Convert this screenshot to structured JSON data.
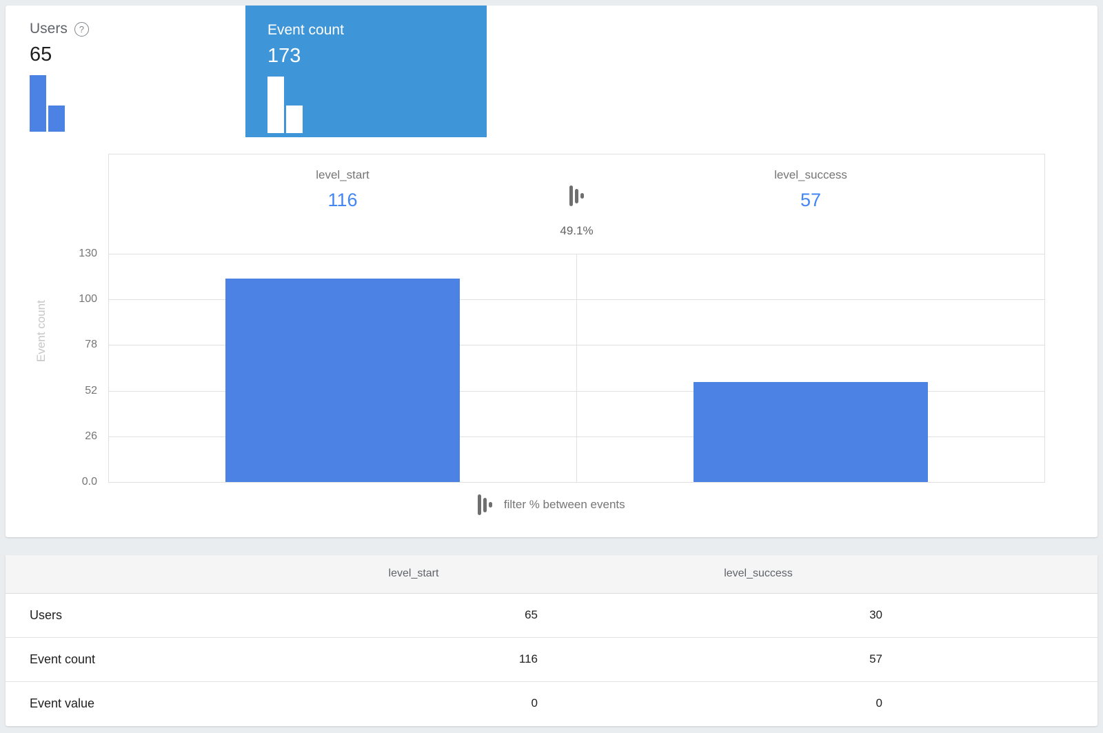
{
  "icons": {
    "help": "?"
  },
  "metrics": {
    "users": {
      "label": "Users",
      "value": "65",
      "mini_bars": [
        65,
        30
      ]
    },
    "event_count": {
      "label": "Event count",
      "value": "173",
      "mini_bars": [
        116,
        57
      ],
      "selected": true
    }
  },
  "chart": {
    "events": [
      {
        "name": "level_start",
        "count": "116",
        "value": 116
      },
      {
        "name": "level_success",
        "count": "57",
        "value": 57
      }
    ],
    "filter_percent": "49.1%",
    "y_axis_label": "Event count",
    "y_max": 130,
    "y_ticks": [
      "130",
      "100",
      "78",
      "52",
      "26",
      "0.0"
    ],
    "legend_label": "filter % between events",
    "colors": {
      "bar": "#4d82e5",
      "count_link": "#4285f4",
      "selected_tile": "#3e96d8"
    }
  },
  "table": {
    "columns": [
      "level_start",
      "level_success"
    ],
    "rows": [
      {
        "label": "Users",
        "values": [
          "65",
          "30"
        ]
      },
      {
        "label": "Event count",
        "values": [
          "116",
          "57"
        ]
      },
      {
        "label": "Event value",
        "values": [
          "0",
          "0"
        ]
      }
    ]
  },
  "chart_data": {
    "type": "bar",
    "categories": [
      "level_start",
      "level_success"
    ],
    "values": [
      116,
      57
    ],
    "xlabel": "",
    "ylabel": "Event count",
    "ylim": [
      0,
      130
    ],
    "y_tick_labels": [
      "0.0",
      "26",
      "52",
      "78",
      "100",
      "130"
    ],
    "grid": true,
    "annotations": {
      "filter_percent_between_events": "49.1%"
    },
    "summary_metrics": {
      "Users": 65,
      "Event count": 173
    },
    "table": {
      "columns": [
        "level_start",
        "level_success"
      ],
      "rows": {
        "Users": [
          65,
          30
        ],
        "Event count": [
          116,
          57
        ],
        "Event value": [
          0,
          0
        ]
      }
    }
  }
}
